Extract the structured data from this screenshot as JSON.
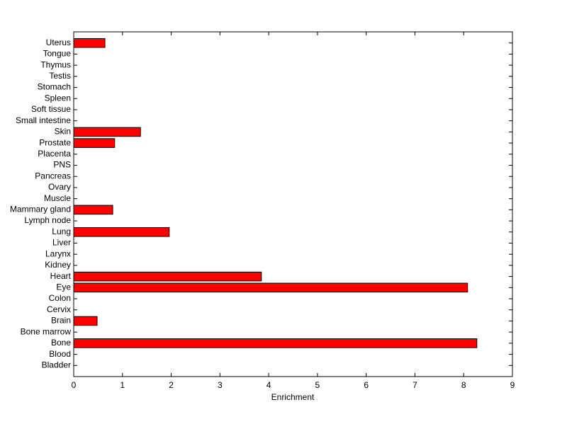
{
  "chart_data": {
    "type": "bar",
    "orientation": "horizontal",
    "categories": [
      "Bladder",
      "Blood",
      "Bone",
      "Bone marrow",
      "Brain",
      "Cervix",
      "Colon",
      "Eye",
      "Heart",
      "Kidney",
      "Larynx",
      "Liver",
      "Lung",
      "Lymph node",
      "Mammary gland",
      "Muscle",
      "Ovary",
      "Pancreas",
      "PNS",
      "Placenta",
      "Prostate",
      "Skin",
      "Small intestine",
      "Soft tissue",
      "Spleen",
      "Stomach",
      "Testis",
      "Thymus",
      "Tongue",
      "Uterus"
    ],
    "values": [
      0,
      0,
      8.27,
      0,
      0.48,
      0,
      0,
      8.08,
      3.85,
      0,
      0,
      0,
      1.96,
      0,
      0.8,
      0,
      0,
      0,
      0,
      0,
      0.84,
      1.37,
      0,
      0,
      0,
      0,
      0,
      0,
      0,
      0.64
    ],
    "color": "#ff0000",
    "xlabel": "Enrichment",
    "xlim": [
      0,
      9
    ],
    "xticks": [
      0,
      1,
      2,
      3,
      4,
      5,
      6,
      7,
      8,
      9
    ]
  }
}
